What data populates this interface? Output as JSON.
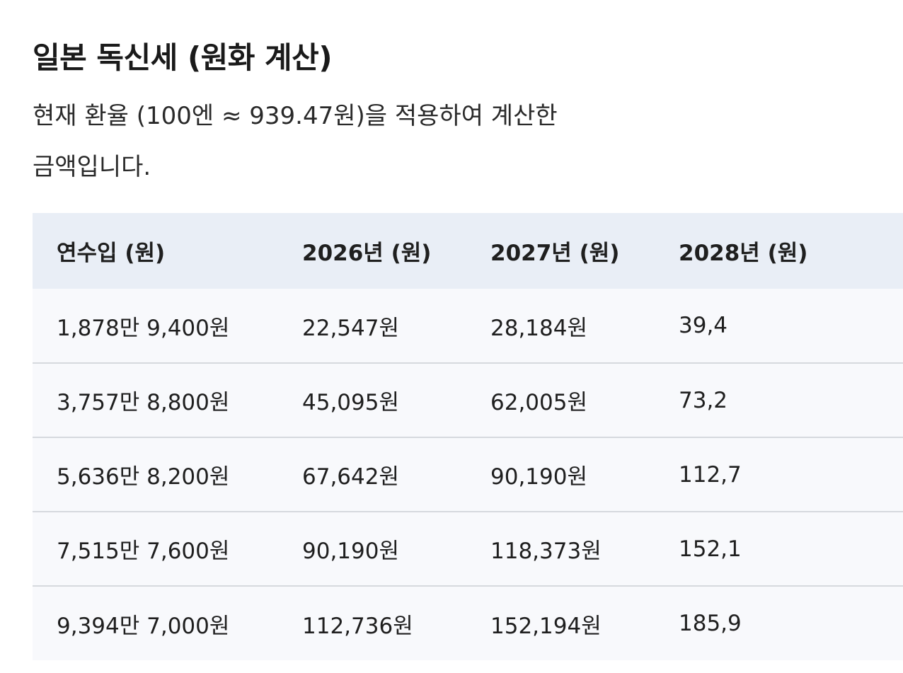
{
  "title": "일본 독신세 (원화 계산)",
  "intro": {
    "line1": "현재 환율 (100엔 ≈ 939.47원)을 적용하여 계산한",
    "line2": "금액입니다."
  },
  "table": {
    "headers": [
      "연수입 (원)",
      "2026년 (원)",
      "2027년 (원)",
      "2028년 (원)"
    ],
    "rows": [
      [
        "1,878만 9,400원",
        "22,547원",
        "28,184원",
        "39,4"
      ],
      [
        "3,757만 8,800원",
        "45,095원",
        "62,005원",
        "73,2"
      ],
      [
        "5,636만 8,200원",
        "67,642원",
        "90,190원",
        "112,7"
      ],
      [
        "7,515만 7,600원",
        "90,190원",
        "118,373원",
        "152,1"
      ],
      [
        "9,394만 7,000원",
        "112,736원",
        "152,194원",
        "185,9"
      ]
    ]
  }
}
